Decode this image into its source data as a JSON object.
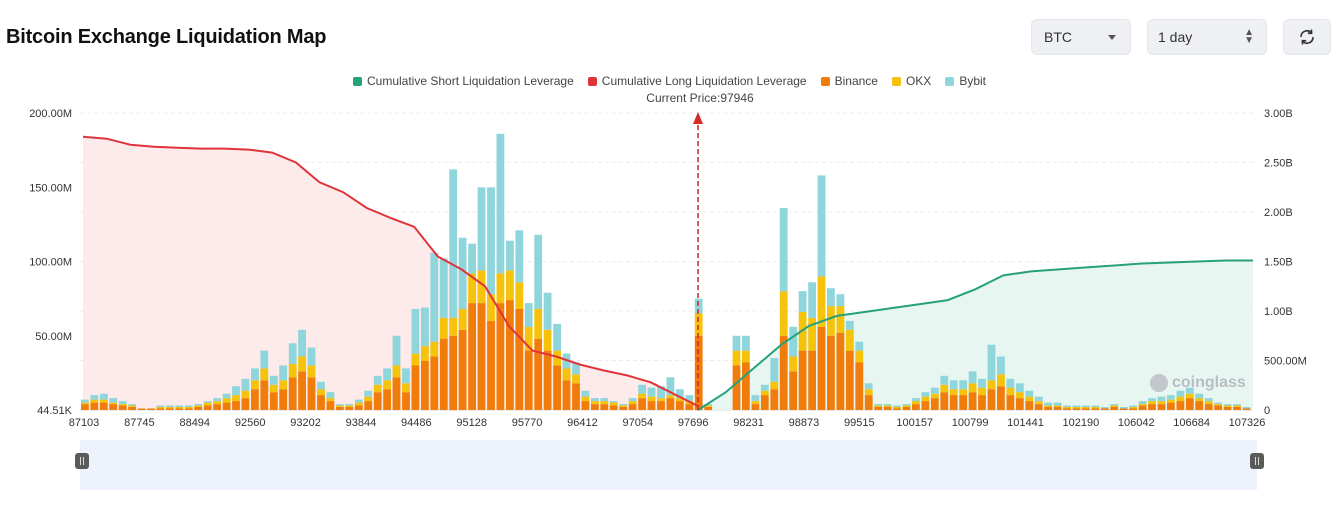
{
  "header": {
    "title": "Bitcoin Exchange Liquidation Map",
    "coin_select": "BTC",
    "time_select": "1 day"
  },
  "legend": [
    {
      "name": "Cumulative Short Liquidation Leverage",
      "color": "#26a17b"
    },
    {
      "name": "Cumulative Long Liquidation Leverage",
      "color": "#e0343b"
    },
    {
      "name": "Binance",
      "color": "#f07c0c"
    },
    {
      "name": "OKX",
      "color": "#f5c20c"
    },
    {
      "name": "Bybit",
      "color": "#8fd5dc"
    }
  ],
  "current_price_label": "Current Price:97946",
  "watermark": "coinglass",
  "chart_data": {
    "type": "bar",
    "x_tick_labels": [
      "87103",
      "87745",
      "88494",
      "92560",
      "93202",
      "93844",
      "94486",
      "95128",
      "95770",
      "96412",
      "97054",
      "97696",
      "98231",
      "98873",
      "99515",
      "100157",
      "100799",
      "101441",
      "102190",
      "106042",
      "106684",
      "107326"
    ],
    "left_axis": {
      "ticks": [
        "44.51K",
        "50.00M",
        "100.00M",
        "150.00M",
        "200.00M"
      ],
      "range": [
        0,
        200
      ]
    },
    "right_axis": {
      "ticks": [
        "0",
        "500.00M",
        "1.00B",
        "1.50B",
        "2.00B",
        "2.50B",
        "3.00B"
      ],
      "range": [
        0,
        3
      ]
    },
    "current_price": 97946,
    "bar_stacks": {
      "binance": [
        4,
        5,
        5,
        4,
        3,
        2,
        1,
        1,
        1,
        1,
        1,
        1,
        2,
        3,
        4,
        5,
        6,
        8,
        14,
        20,
        12,
        14,
        22,
        26,
        22,
        10,
        6,
        2,
        2,
        3,
        6,
        12,
        14,
        22,
        12,
        30,
        33,
        36,
        48,
        50,
        54,
        72,
        72,
        60,
        72,
        74,
        68,
        40,
        48,
        40,
        30,
        20,
        18,
        6,
        4,
        4,
        3,
        2,
        4,
        8,
        6,
        6,
        8,
        6,
        4,
        50,
        2,
        0,
        0,
        30,
        32,
        4,
        10,
        14,
        50,
        26,
        40,
        40,
        56,
        50,
        52,
        40,
        32,
        10,
        2,
        2,
        1,
        2,
        4,
        6,
        8,
        12,
        10,
        10,
        12,
        10,
        14,
        16,
        10,
        8,
        6,
        4,
        2,
        2,
        1,
        1,
        1,
        1,
        1,
        2,
        1,
        1,
        3,
        4,
        4,
        5,
        6,
        8,
        6,
        4,
        3,
        2,
        2,
        1
      ],
      "okx": [
        1,
        2,
        2,
        1,
        1,
        1,
        0,
        0,
        1,
        1,
        1,
        1,
        1,
        2,
        2,
        3,
        4,
        5,
        6,
        8,
        5,
        6,
        9,
        10,
        8,
        4,
        2,
        1,
        1,
        2,
        3,
        5,
        6,
        8,
        6,
        8,
        10,
        10,
        14,
        12,
        14,
        20,
        22,
        18,
        20,
        20,
        18,
        16,
        20,
        14,
        10,
        8,
        6,
        3,
        2,
        2,
        2,
        1,
        2,
        3,
        3,
        2,
        2,
        2,
        2,
        15,
        1,
        0,
        0,
        10,
        8,
        2,
        3,
        5,
        30,
        10,
        26,
        22,
        34,
        20,
        18,
        14,
        8,
        4,
        1,
        1,
        1,
        1,
        2,
        3,
        3,
        5,
        4,
        4,
        6,
        5,
        6,
        8,
        5,
        4,
        3,
        2,
        1,
        1,
        1,
        1,
        1,
        1,
        0,
        1,
        0,
        1,
        1,
        2,
        2,
        2,
        3,
        3,
        2,
        2,
        1,
        1,
        1,
        0
      ],
      "bybit": [
        2,
        3,
        4,
        3,
        2,
        1,
        0,
        0,
        1,
        1,
        1,
        1,
        1,
        1,
        2,
        3,
        6,
        8,
        8,
        12,
        6,
        10,
        14,
        18,
        12,
        5,
        4,
        1,
        1,
        2,
        4,
        6,
        8,
        20,
        10,
        30,
        26,
        60,
        40,
        100,
        48,
        20,
        56,
        72,
        94,
        20,
        35,
        16,
        50,
        25,
        18,
        10,
        8,
        4,
        2,
        2,
        1,
        1,
        2,
        6,
        6,
        8,
        12,
        6,
        4,
        10,
        1,
        0,
        0,
        10,
        10,
        4,
        4,
        16,
        56,
        20,
        14,
        24,
        68,
        12,
        8,
        6,
        6,
        4,
        1,
        1,
        1,
        1,
        2,
        3,
        4,
        6,
        6,
        6,
        8,
        6,
        24,
        12,
        6,
        6,
        4,
        3,
        2,
        2,
        1,
        1,
        1,
        1,
        1,
        1,
        1,
        1,
        2,
        2,
        3,
        3,
        4,
        4,
        3,
        2,
        1,
        1,
        1,
        1
      ]
    },
    "long_cumulative_b": [
      2.76,
      2.74,
      2.68,
      2.66,
      2.65,
      2.64,
      2.64,
      2.63,
      2.6,
      2.5,
      2.3,
      2.2,
      2.04,
      1.94,
      1.85,
      1.55,
      1.42,
      1.25,
      0.85,
      0.6,
      0.54,
      0.46,
      0.4,
      0.35,
      0.28,
      0.16,
      0.04
    ],
    "short_cumulative_b": [
      0.0,
      0.18,
      0.42,
      0.66,
      0.85,
      0.95,
      0.99,
      1.03,
      1.07,
      1.11,
      1.22,
      1.36,
      1.4,
      1.42,
      1.44,
      1.46,
      1.48,
      1.49,
      1.5,
      1.51,
      1.51
    ]
  }
}
